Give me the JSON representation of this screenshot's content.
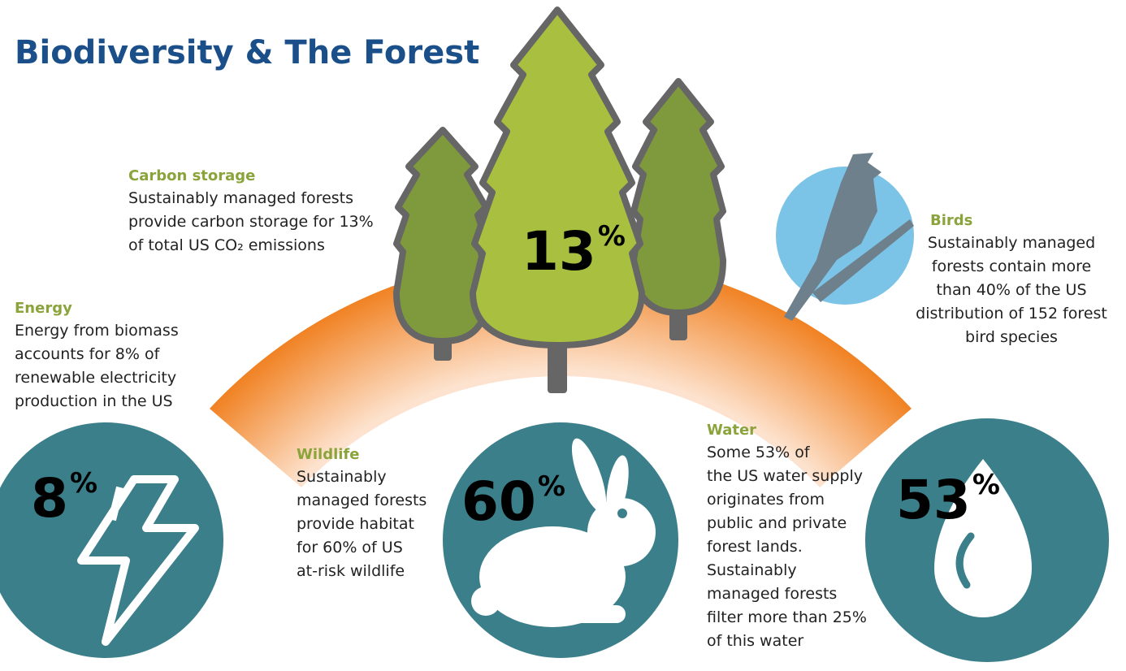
{
  "title": "Biodiversity & The Forest",
  "sections": [
    {
      "heading": "Carbon storage",
      "lines": [
        "Sustainably managed forests",
        "provide carbon storage for 13%",
        "of total US CO₂ emissions"
      ],
      "number": "13",
      "unit": "%"
    },
    {
      "heading": "Energy",
      "lines": [
        "Energy from biomass",
        "accounts for 8% of",
        "renewable electricity",
        "production in the US"
      ],
      "number": "8",
      "unit": "%"
    },
    {
      "heading": "Wildlife",
      "lines": [
        "Sustainably",
        "managed forests",
        "provide habitat",
        "for 60% of US",
        "at-risk wildlife"
      ],
      "number": "60",
      "unit": "%"
    },
    {
      "heading": "Water",
      "lines": [
        "Some 53% of",
        "the US water supply",
        "originates from",
        "public and private",
        "forest lands.",
        "Sustainably",
        "managed forests",
        "filter more than 25%",
        "of this water"
      ],
      "number": "53",
      "unit": "%"
    },
    {
      "heading": "Birds",
      "lines": [
        "Sustainably managed",
        "forests contain more",
        "than 40% of the US",
        "distribution of 152 forest",
        "bird species"
      ]
    }
  ]
}
